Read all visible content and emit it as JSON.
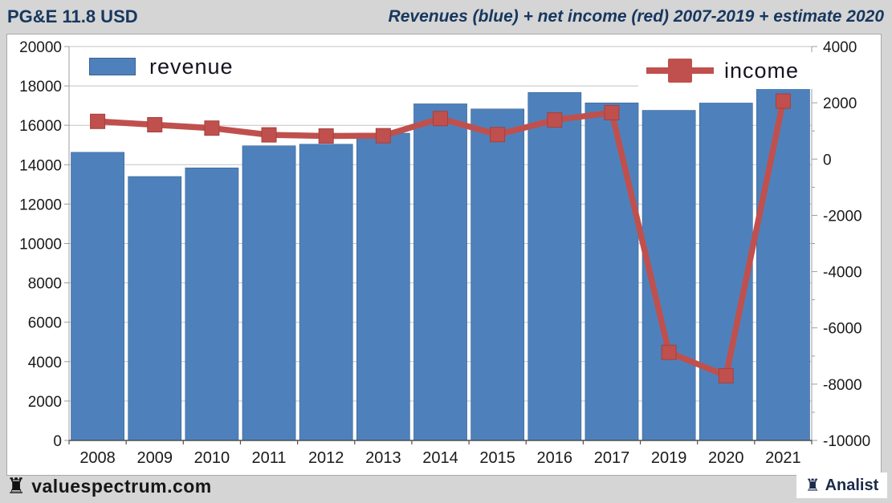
{
  "header": {
    "left_title": "PG&E 11.8 USD",
    "right_title": "Revenues (blue) + net income (red) 2007-2019 + estimate 2020"
  },
  "legend": {
    "revenue_label": "revenue",
    "income_label": "income"
  },
  "footer": {
    "left_brand": "valuespectrum.com",
    "right_brand": "Analist",
    "rook_icon": "♜"
  },
  "colors": {
    "background": "#D5D5D5",
    "plot_background": "#FFFFFF",
    "title": "#17375E",
    "bar": "#4E81BC",
    "bar_border": "#3A6293",
    "line": "#C0504D",
    "marker_border": "#A5403E",
    "grid": "#C3C3C3",
    "axis": "#9C9C9C",
    "axis_bottom": "#4F4F4F",
    "axis_text": "#1A1A1A"
  },
  "chart_data": {
    "type": "bar",
    "title": "Revenues (blue) + net income (red) 2007-2019 + estimate 2020",
    "categories": [
      "2008",
      "2009",
      "2010",
      "2011",
      "2012",
      "2013",
      "2014",
      "2015",
      "2016",
      "2017",
      "2019",
      "2020",
      "2021"
    ],
    "series": [
      {
        "name": "revenue",
        "type": "bar",
        "axis": "left",
        "values": [
          14630,
          13400,
          13840,
          14960,
          15040,
          15600,
          17090,
          16830,
          17670,
          17140,
          16760,
          17130,
          17880
        ]
      },
      {
        "name": "income",
        "type": "line",
        "axis": "right",
        "values": [
          1340,
          1220,
          1100,
          860,
          820,
          830,
          1440,
          870,
          1390,
          1650,
          -6870,
          -7700,
          2060
        ]
      }
    ],
    "left_axis": {
      "min": 0,
      "max": 20000,
      "step": 2000,
      "tick_labels": [
        "0",
        "2000",
        "4000",
        "6000",
        "8000",
        "10000",
        "12000",
        "14000",
        "16000",
        "18000",
        "20000"
      ]
    },
    "right_axis": {
      "min": -10000,
      "max": 4000,
      "step": 2000,
      "tick_labels": [
        "4000",
        "2000",
        "0",
        "-2000",
        "-4000",
        "-6000",
        "-8000",
        "-10000"
      ]
    },
    "grid": true,
    "legend_position": "top"
  }
}
